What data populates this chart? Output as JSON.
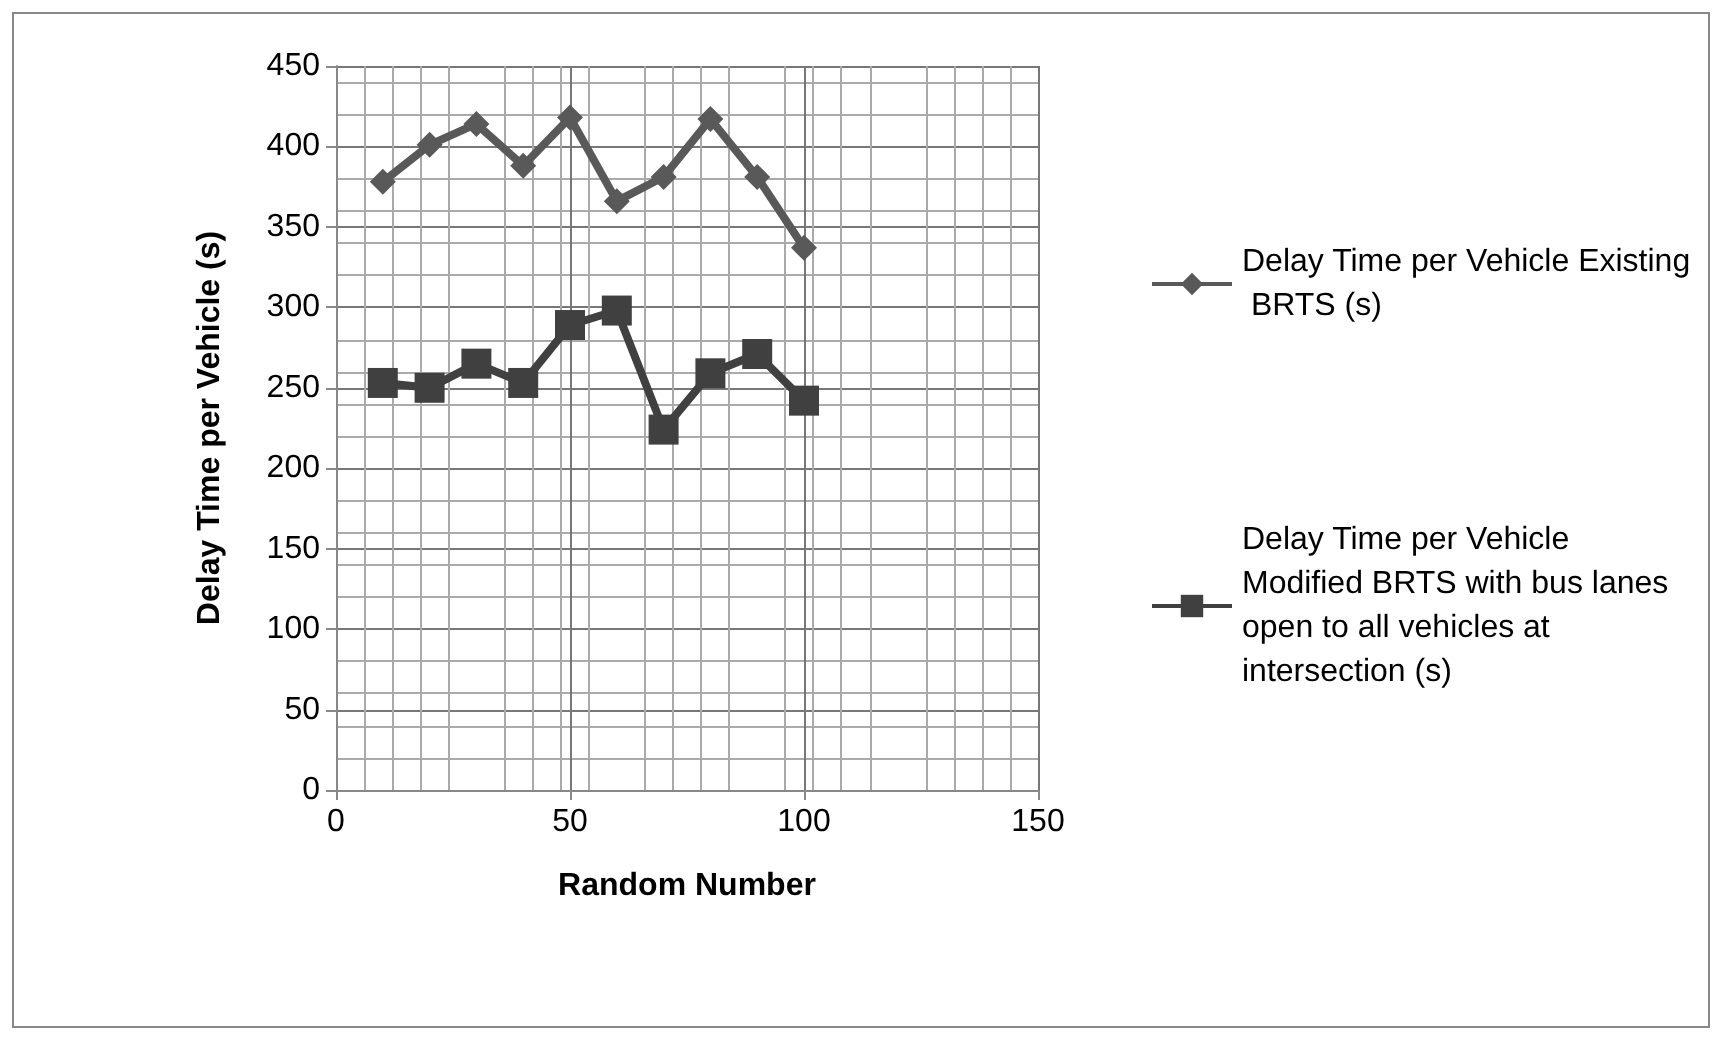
{
  "chart_data": {
    "type": "line",
    "xlabel": "Random Number",
    "ylabel": "Delay Time per Vehicle (s)",
    "x": [
      10,
      20,
      30,
      40,
      50,
      60,
      70,
      80,
      90,
      100
    ],
    "series": [
      {
        "name": "Delay Time per Vehicle Existing BRTS (s)",
        "color": "#595959",
        "marker": "diamond",
        "values": [
          378,
          401,
          414,
          388,
          418,
          366,
          381,
          417,
          381,
          337
        ]
      },
      {
        "name": "Delay Time per Vehicle Modified BRTS with bus lanes open to all vehicles at intersection (s)",
        "color": "#404040",
        "marker": "square",
        "values": [
          253,
          250,
          265,
          253,
          289,
          298,
          224,
          259,
          271,
          242
        ]
      }
    ],
    "xlim": [
      0,
      150
    ],
    "xticks": [
      0,
      50,
      100,
      150
    ],
    "ylim": [
      0,
      450
    ],
    "yticks": [
      0,
      50,
      100,
      150,
      200,
      250,
      300,
      350,
      400,
      450
    ],
    "grid": true,
    "legend": "right"
  }
}
